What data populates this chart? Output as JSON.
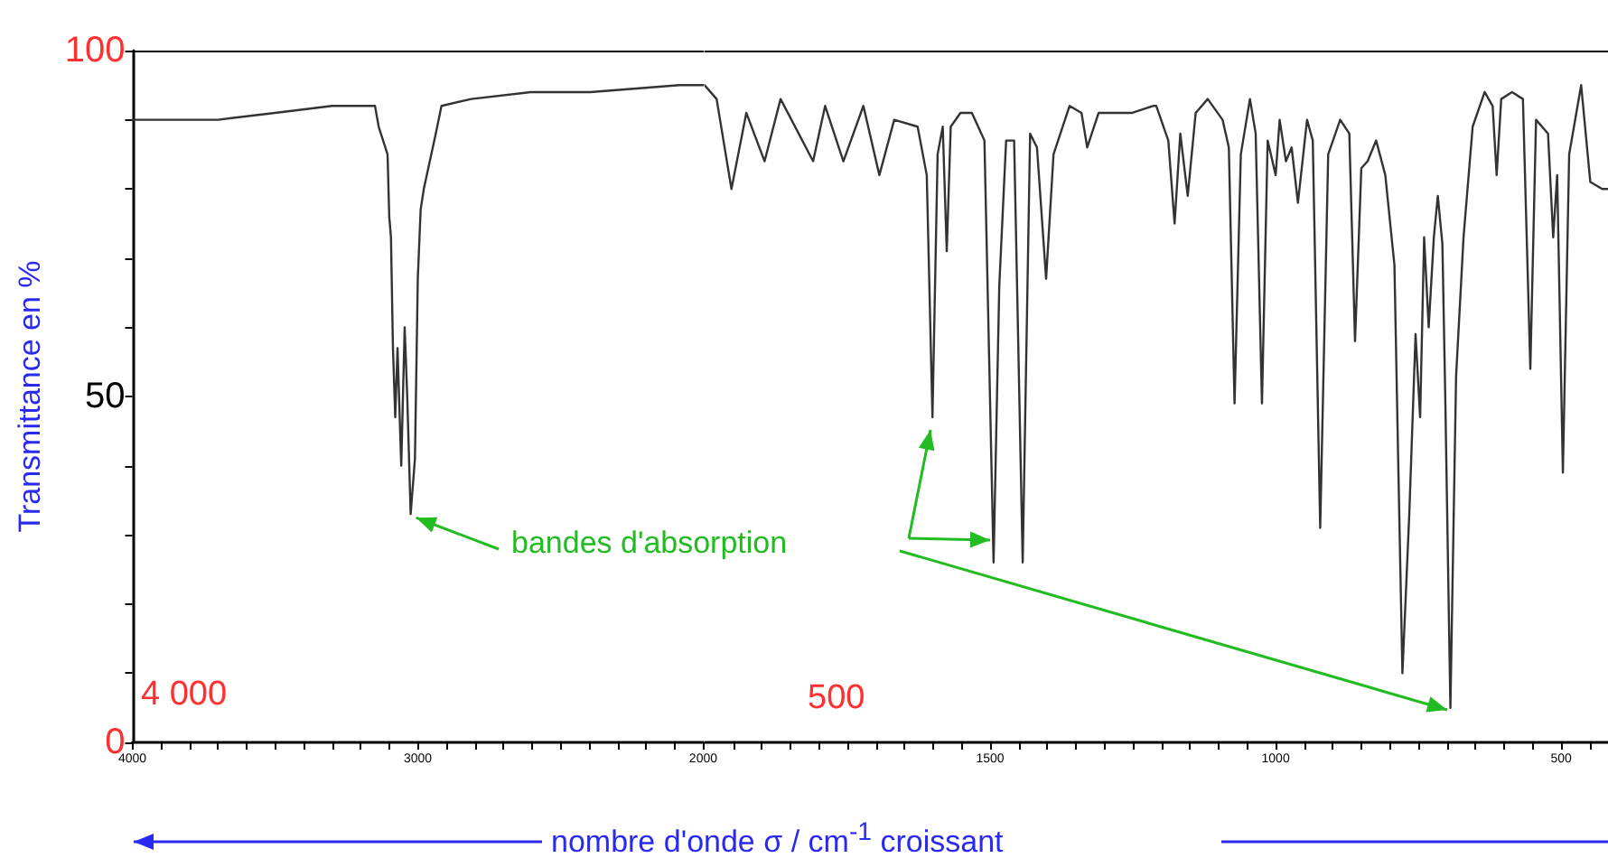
{
  "chart_data": [
    {
      "type": "line",
      "ylabel": "Transmittance en %",
      "xlabel": "nombre d'onde σ / cm$^{-1}$ croissant",
      "marker": "none",
      "line_style": "solid",
      "xlim": [
        4000,
        2000
      ],
      "xticks": [
        4000,
        {
          "value": 3900,
          "label": null
        },
        {
          "value": 3800,
          "label": null
        },
        {
          "value": 3700,
          "label": null
        },
        {
          "value": 3600,
          "label": null
        },
        {
          "value": 3500,
          "label": null
        },
        {
          "value": 3400,
          "label": null
        },
        {
          "value": 3300,
          "label": null
        },
        {
          "value": 3200,
          "label": null
        },
        {
          "value": 3100,
          "label": null
        },
        3000,
        {
          "value": 2900,
          "label": null
        },
        {
          "value": 2800,
          "label": null
        },
        {
          "value": 2700,
          "label": null
        },
        {
          "value": 2600,
          "label": null
        },
        {
          "value": 2500,
          "label": null
        },
        {
          "value": 2400,
          "label": null
        },
        {
          "value": 2300,
          "label": null
        },
        {
          "value": 2200,
          "label": null
        },
        {
          "value": 2100,
          "label": null
        },
        2000
      ],
      "ylim": [
        0,
        100
      ],
      "yticks": [
        0,
        {
          "value": 10,
          "label": null
        },
        {
          "value": 20,
          "label": null
        },
        {
          "value": 30,
          "label": null
        },
        {
          "value": 40,
          "label": null
        },
        50,
        {
          "value": 60,
          "label": null
        },
        {
          "value": 70,
          "label": null
        },
        {
          "value": 80,
          "label": null
        },
        {
          "value": 90,
          "label": null
        },
        100
      ],
      "annotations": [
        "4 000",
        {
          "text": "bandes d'absorption",
          "x": 3025,
          "y": 33
        }
      ],
      "series": [
        {
          "color": "#333333",
          "x": [
            4000,
            3700,
            3500,
            3300,
            3150,
            3137,
            3106,
            3100,
            3094,
            3087,
            3079,
            3071,
            3058,
            3046,
            3037,
            3025,
            3010,
            3000,
            2990,
            2979,
            2937,
            2917,
            2813,
            2604,
            2396,
            2083,
            2000
          ],
          "values": [
            90,
            90,
            91,
            92,
            92,
            89,
            85,
            76,
            73,
            57,
            47,
            57,
            40,
            60,
            50,
            33,
            41,
            67,
            77,
            80,
            88,
            92,
            93,
            94,
            94,
            95,
            95
          ]
        }
      ]
    },
    {
      "type": "line",
      "marker": "none",
      "line_style": "solid",
      "tick_labels": "x",
      "xlim": [
        2000,
        418
      ],
      "xticks": [
        {
          "value": 1950,
          "label": null
        },
        {
          "value": 1900,
          "label": null
        },
        {
          "value": 1850,
          "label": null
        },
        {
          "value": 1800,
          "label": null
        },
        {
          "value": 1750,
          "label": null
        },
        {
          "value": 1700,
          "label": null
        },
        {
          "value": 1650,
          "label": null
        },
        {
          "value": 1600,
          "label": null
        },
        {
          "value": 1550,
          "label": null
        },
        1500,
        {
          "value": 1450,
          "label": null
        },
        {
          "value": 1400,
          "label": null
        },
        {
          "value": 1350,
          "label": null
        },
        {
          "value": 1300,
          "label": null
        },
        {
          "value": 1250,
          "label": null
        },
        {
          "value": 1200,
          "label": null
        },
        {
          "value": 1150,
          "label": null
        },
        {
          "value": 1100,
          "label": null
        },
        {
          "value": 1050,
          "label": null
        },
        1000,
        {
          "value": 950,
          "label": null
        },
        {
          "value": 900,
          "label": null
        },
        {
          "value": 850,
          "label": null
        },
        {
          "value": 800,
          "label": null
        },
        {
          "value": 750,
          "label": null
        },
        {
          "value": 700,
          "label": null
        },
        {
          "value": 650,
          "label": null
        },
        {
          "value": 600,
          "label": null
        },
        {
          "value": 550,
          "label": null
        },
        500,
        {
          "value": 450,
          "label": null
        }
      ],
      "ylim": [
        0,
        100
      ],
      "annotations": [
        "500"
      ],
      "series": [
        {
          "color": "#333333",
          "x": [
            2000,
            1979,
            1953,
            1927,
            1895,
            1867,
            1810,
            1789,
            1757,
            1722,
            1694,
            1668,
            1627,
            1611,
            1601,
            1592,
            1583,
            1576,
            1569,
            1552,
            1532,
            1510,
            1494,
            1484,
            1472,
            1458,
            1443,
            1430,
            1418,
            1402,
            1389,
            1361,
            1340,
            1330,
            1310,
            1251,
            1215,
            1209,
            1188,
            1177,
            1167,
            1154,
            1140,
            1119,
            1093,
            1082,
            1072,
            1061,
            1045,
            1035,
            1024,
            1014,
            1000,
            993,
            982,
            972,
            961,
            945,
            935,
            922,
            908,
            887,
            871,
            861,
            850,
            839,
            824,
            808,
            792,
            785,
            778,
            766,
            755,
            747,
            740,
            732,
            723,
            716,
            708,
            703,
            694,
            684,
            671,
            655,
            634,
            620,
            613,
            605,
            586,
            567,
            554,
            544,
            523,
            514,
            507,
            497,
            486,
            465,
            449,
            428,
            418
          ],
          "values": [
            95,
            93,
            80,
            91,
            84,
            93,
            84,
            92,
            84,
            92,
            82,
            90,
            89,
            82,
            47,
            85,
            89,
            71,
            89,
            91,
            91,
            87,
            26,
            66,
            87,
            87,
            26,
            88,
            86,
            67,
            85,
            92,
            91,
            86,
            91,
            91,
            92,
            92,
            87,
            75,
            88,
            79,
            91,
            93,
            90,
            86,
            49,
            85,
            93,
            88,
            49,
            87,
            82,
            90,
            84,
            86,
            78,
            90,
            87,
            31,
            85,
            90,
            88,
            58,
            83,
            84,
            87,
            82,
            69,
            39,
            10,
            33,
            59,
            47,
            73,
            60,
            73,
            79,
            72,
            50,
            5,
            53,
            73,
            89,
            94,
            92,
            82,
            93,
            94,
            93,
            54,
            90,
            88,
            73,
            82,
            39,
            85,
            95,
            81,
            80,
            80
          ]
        }
      ]
    }
  ]
}
